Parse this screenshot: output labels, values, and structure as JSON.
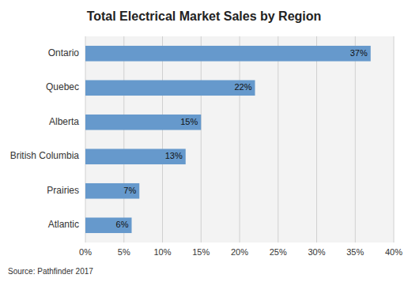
{
  "chart_data": {
    "type": "bar",
    "orientation": "horizontal",
    "title": "Total Electrical Market Sales by Region",
    "categories": [
      "Atlantic",
      "Prairies",
      "British Columbia",
      "Alberta",
      "Quebec",
      "Ontario"
    ],
    "values": [
      0.06,
      0.07,
      0.13,
      0.15,
      0.22,
      0.37
    ],
    "value_labels": [
      "6%",
      "7%",
      "13%",
      "15%",
      "22%",
      "37%"
    ],
    "data_labels": true,
    "color": "#6699cc",
    "xlim": [
      0,
      0.4
    ],
    "xticks": [
      {
        "value": 0,
        "label": "0%"
      },
      {
        "value": 0.05,
        "label": "5%"
      },
      {
        "value": 0.1,
        "label": "10%"
      },
      {
        "value": 0.15,
        "label": "15%"
      },
      {
        "value": 0.2,
        "label": "20%"
      },
      {
        "value": 0.25,
        "label": "25%"
      },
      {
        "value": 0.3,
        "label": "30%"
      },
      {
        "value": 0.35,
        "label": "35%"
      },
      {
        "value": 0.4,
        "label": "40%"
      }
    ],
    "grid": true,
    "annotations": [
      "Source: Pathfinder 2017"
    ]
  }
}
